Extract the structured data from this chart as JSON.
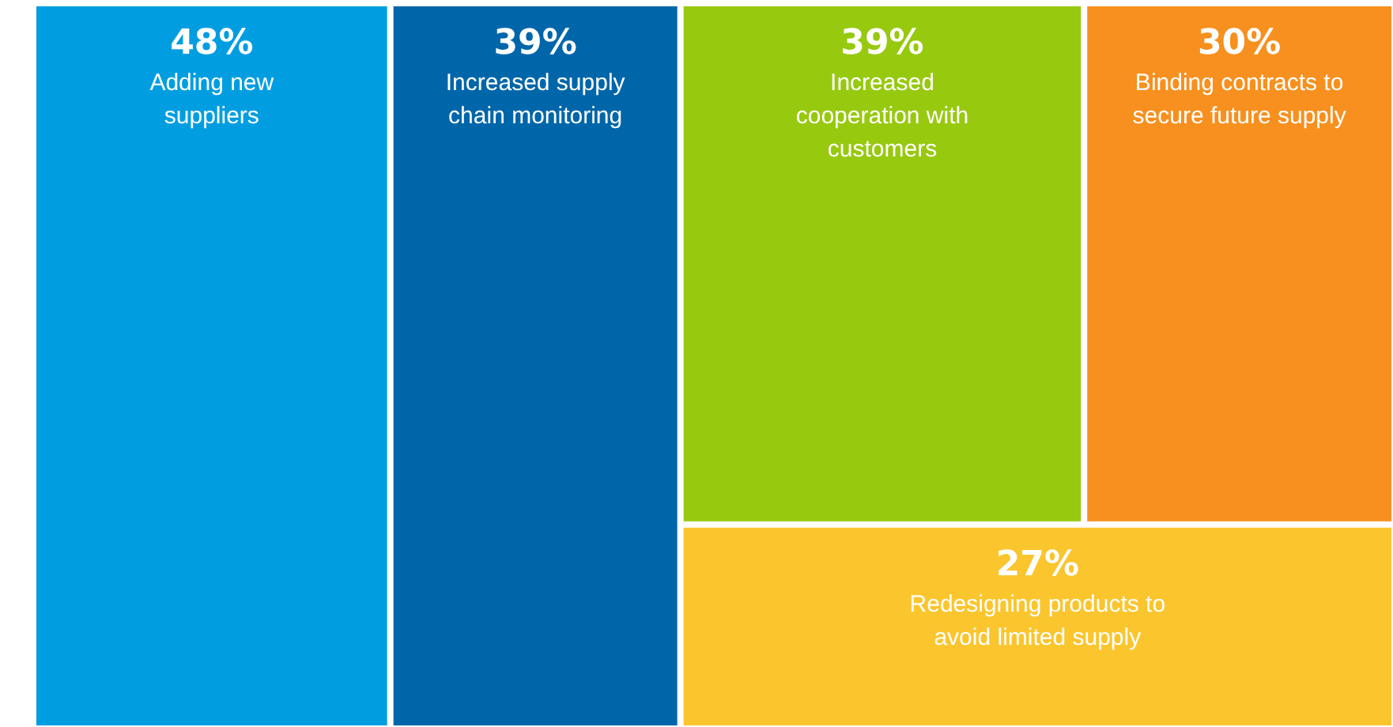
{
  "chart_data": {
    "type": "other",
    "categories": [
      "Adding new\nsuppliers",
      "Increased supply\nchain monitoring",
      "Increased\ncooperation with\ncustomers",
      "Binding contracts to\nsecure future supply",
      "Redesigning products to\navoid limited supply"
    ],
    "values": [
      48,
      39,
      39,
      30,
      27
    ],
    "value_labels": [
      "48%",
      "39%",
      "39%",
      "30%",
      "27%"
    ],
    "colors": [
      "#009ee0",
      "#0066aa",
      "#97c90f",
      "#f7901e",
      "#fbc52d"
    ]
  }
}
